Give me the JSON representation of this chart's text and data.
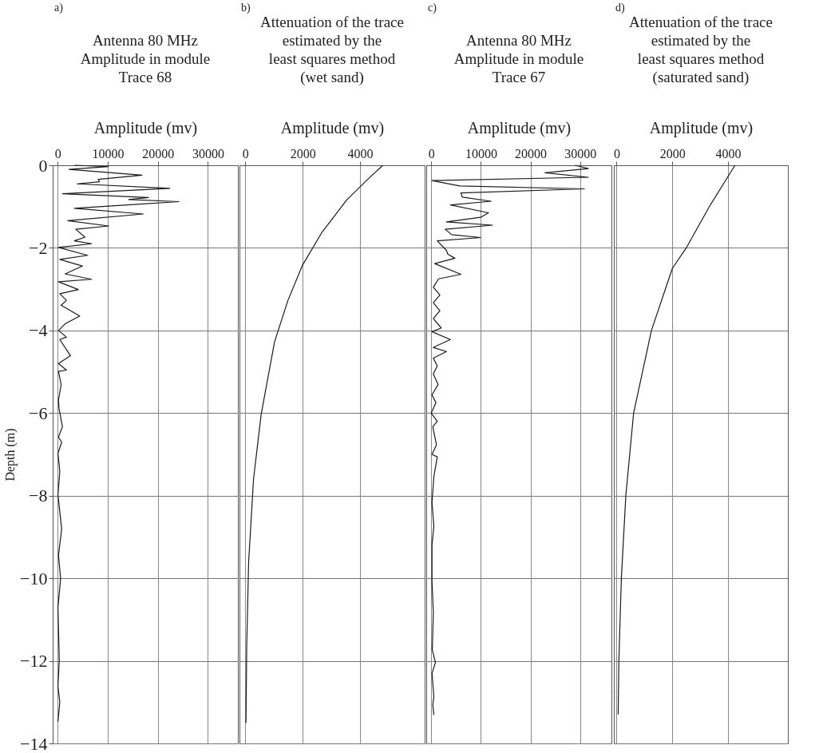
{
  "chart_data": [
    {
      "type": "line",
      "title": "Antenna 80 MHz\nAmplitude in module\nTrace 68",
      "xlabel": "Amplitude (mv)",
      "ylabel": "Depth (m)",
      "annotations": [
        "a)"
      ],
      "xlim": [
        -1000,
        36000
      ],
      "xticks": [
        0,
        10000,
        20000,
        30000
      ],
      "ylim": [
        -14,
        0
      ],
      "yticks": [
        0,
        -2,
        -4,
        -6,
        -8,
        -10,
        -12,
        -14
      ],
      "grid": true,
      "line_style": "solid",
      "series": [
        {
          "color": "#1a1a1a",
          "x": [
            3333,
            10106,
            2275,
            16825,
            8095,
            8360,
            3862,
            22381,
            952,
            18148,
            14180,
            24233,
            3333,
            17090,
            2011,
            10212,
            3598,
            5450,
            3333,
            6772,
            159,
            5979,
            423,
            4920,
            1481,
            6772,
            159,
            4127,
            423,
            1746,
            688,
            4392,
            1481,
            159,
            1746,
            423,
            2540,
            159,
            1746,
            159,
            688,
            159,
            265,
            952,
            159,
            794,
            53,
            423,
            53,
            794,
            159,
            582,
            53,
            317,
            53,
            423,
            53
          ],
          "values": [
            0,
            -0.03,
            -0.1,
            -0.24,
            -0.34,
            -0.4,
            -0.45,
            -0.56,
            -0.69,
            -0.78,
            -0.83,
            -0.88,
            -1.04,
            -1.18,
            -1.34,
            -1.47,
            -1.55,
            -1.74,
            -1.83,
            -1.9,
            -1.99,
            -2.18,
            -2.28,
            -2.44,
            -2.63,
            -2.76,
            -2.82,
            -3.01,
            -3.11,
            -3.27,
            -3.39,
            -3.65,
            -3.84,
            -4.0,
            -4.16,
            -4.22,
            -4.61,
            -4.8,
            -4.96,
            -4.99,
            -5.31,
            -5.69,
            -5.89,
            -6.33,
            -6.58,
            -6.71,
            -6.97,
            -7.41,
            -7.98,
            -8.81,
            -9.44,
            -10.01,
            -10.71,
            -11.98,
            -12.62,
            -13.0,
            -13.47
          ]
        }
      ]
    },
    {
      "type": "line",
      "title": "Attenuation of the trace\nestimated by the\nleast squares method\n(wet sand)",
      "xlabel": "Amplitude (mv)",
      "annotations": [
        "b)"
      ],
      "xlim": [
        -200,
        6250
      ],
      "xticks": [
        0,
        2000,
        4000
      ],
      "ylim": [
        -14,
        0
      ],
      "yticks": [
        0,
        -2,
        -4,
        -6,
        -8,
        -10,
        -12,
        -14
      ],
      "grid": true,
      "line_style": "solid",
      "tick_labels": "x",
      "series": [
        {
          "color": "#1a1a1a",
          "x": [
            4795,
            4265,
            3536,
            2675,
            1987,
            1483,
            1020,
            556,
            291,
            119,
            53,
            26
          ],
          "values": [
            0,
            -0.34,
            -0.84,
            -1.62,
            -2.43,
            -3.28,
            -4.28,
            -6.03,
            -7.59,
            -9.61,
            -11.62,
            -13.5
          ]
        }
      ]
    },
    {
      "type": "line",
      "title": "Antenna 80 MHz\nAmplitude in module\nTrace 67",
      "xlabel": "Amplitude (mv)",
      "annotations": [
        "c)"
      ],
      "xlim": [
        -1000,
        36300
      ],
      "xticks": [
        0,
        10000,
        20000,
        30000
      ],
      "ylim": [
        -14,
        0
      ],
      "yticks": [
        0,
        -2,
        -4,
        -6,
        -8,
        -10,
        -12,
        -14
      ],
      "grid": true,
      "line_style": "solid",
      "tick_labels": "x",
      "series": [
        {
          "color": "#1a1a1a",
          "x": [
            28995,
            31640,
            22910,
            31640,
            159,
            5714,
            30847,
            5979,
            6243,
            12063,
            3862,
            11534,
            9947,
            3069,
            12328,
            2804,
            4127,
            9947,
            1217,
            3069,
            3333,
            4762,
            688,
            5979,
            1481,
            423,
            1746,
            423,
            1746,
            423,
            2011,
            159,
            3862,
            423,
            3069,
            423,
            1217,
            423,
            1376,
            159,
            952,
            0,
            1217,
            317,
            1058,
            159,
            1217,
            529,
            159,
            529,
            159,
            159,
            423,
            212,
            847,
            159,
            529,
            317,
            529
          ],
          "values": [
            0,
            -0.08,
            -0.18,
            -0.29,
            -0.37,
            -0.5,
            -0.57,
            -0.67,
            -0.77,
            -0.87,
            -0.96,
            -1.15,
            -1.26,
            -1.37,
            -1.45,
            -1.55,
            -1.68,
            -1.75,
            -1.83,
            -2.06,
            -2.15,
            -2.25,
            -2.38,
            -2.64,
            -2.75,
            -2.95,
            -3.14,
            -3.33,
            -3.52,
            -3.71,
            -3.94,
            -4.03,
            -4.22,
            -4.41,
            -4.51,
            -4.67,
            -4.86,
            -5.05,
            -5.31,
            -5.56,
            -5.75,
            -6.0,
            -6.2,
            -6.33,
            -6.77,
            -7.0,
            -7.06,
            -7.54,
            -8.17,
            -8.74,
            -9.19,
            -10.08,
            -10.84,
            -11.73,
            -12.04,
            -12.3,
            -12.87,
            -13.06,
            -13.31
          ]
        }
      ]
    },
    {
      "type": "line",
      "title": "Attenuation of the trace\nestimated by the\nleast squares method\n(saturated sand)",
      "xlabel": "Amplitude (mv)",
      "annotations": [
        "d)"
      ],
      "xlim": [
        -100,
        6150
      ],
      "xticks": [
        0,
        2000,
        4000
      ],
      "ylim": [
        -14,
        0
      ],
      "yticks": [
        0,
        -2,
        -4,
        -6,
        -8,
        -10,
        -12,
        -14
      ],
      "grid": true,
      "line_style": "solid",
      "tick_labels": "x",
      "series": [
        {
          "color": "#1a1a1a",
          "x": [
            4250,
            3330,
            2500,
            2000,
            1250,
            610,
            330,
            170,
            80,
            55
          ],
          "values": [
            0,
            -1,
            -2,
            -2.5,
            -4,
            -6,
            -8,
            -10,
            -12,
            -13.3
          ]
        }
      ]
    }
  ]
}
